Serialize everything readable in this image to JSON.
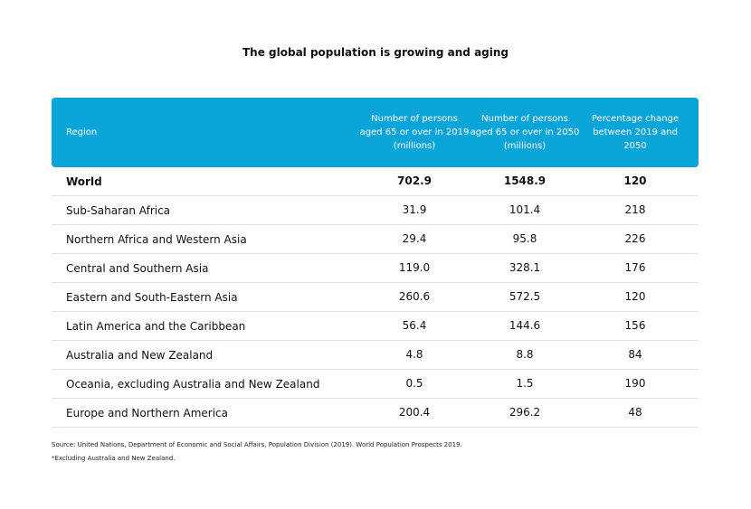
{
  "title": "The global population is growing and aging",
  "table": {
    "header": [
      "Region",
      "Number of persons aged 65 or over in 2019 (millions)",
      "Number of persons aged 65 or over in 2050 (millions)",
      "Percentage change between 2019 and 2050"
    ],
    "rows": [
      [
        "World",
        "702.9",
        "1548.9",
        "120"
      ],
      [
        "Sub-Saharan Africa",
        "31.9",
        "101.4",
        "218"
      ],
      [
        "Northern Africa and Western Asia",
        "29.4",
        "95.8",
        "226"
      ],
      [
        "Central and Southern Asia",
        "119.0",
        "328.1",
        "176"
      ],
      [
        "Eastern and South-Eastern Asia",
        "260.6",
        "572.5",
        "120"
      ],
      [
        "Latin America and the Caribbean",
        "56.4",
        "144.6",
        "156"
      ],
      [
        "Australia and New Zealand",
        "4.8",
        "8.8",
        "84"
      ],
      [
        "Oceania, excluding Australia and New Zealand",
        "0.5",
        "1.5",
        "190"
      ],
      [
        "Europe and Northern America",
        "200.4",
        "296.2",
        "48"
      ]
    ]
  },
  "footnotes": [
    "Source: United Nations, Department of Economic and Social Affairs, Population Division (2019). World Population Prospects 2019.",
    "*Excluding Australia and New Zealand."
  ]
}
